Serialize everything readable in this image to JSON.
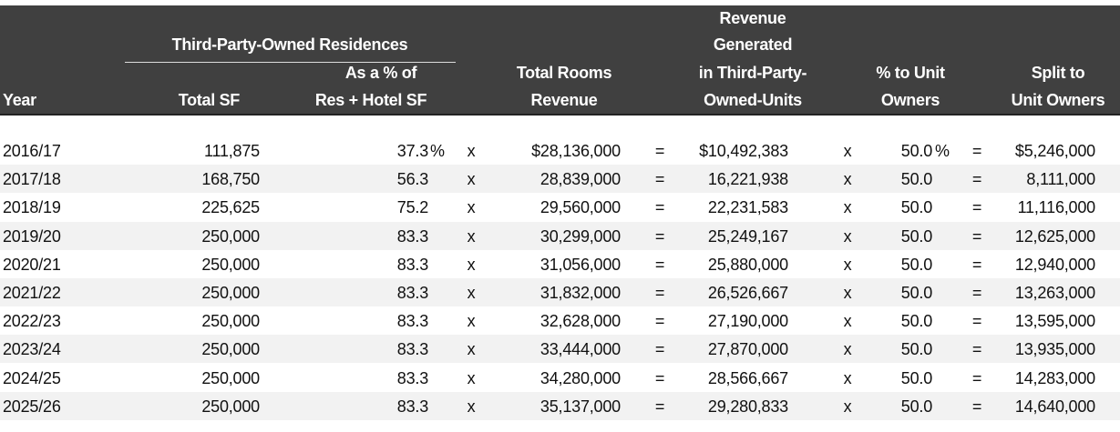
{
  "header": {
    "group_title": "Third-Party-Owned Residences",
    "year": "Year",
    "total_sf": "Total SF",
    "pct_line1": "As a % of",
    "pct_line2": "Res + Hotel SF",
    "rooms_line1": "Total Rooms",
    "rooms_line2": "Revenue",
    "gen_line1": "Revenue",
    "gen_line2": "Generated",
    "gen_line3": "in Third-Party-",
    "gen_line4": "Owned-Units",
    "owners_line1": "% to Unit",
    "owners_line2": "Owners",
    "split_line1": "Split to",
    "split_line2": "Unit Owners"
  },
  "rows": [
    {
      "year": "2016/17",
      "total_sf": "111,875",
      "pct": "37.3",
      "pct_suffix": "%",
      "op1": "x",
      "rooms": "$28,136,000",
      "op2": "=",
      "generated": "$10,492,383",
      "op3": "x",
      "owners_pct": "50.0",
      "owners_suffix": "%",
      "op4": "=",
      "split": "$5,246,000"
    },
    {
      "year": "2017/18",
      "total_sf": "168,750",
      "pct": "56.3",
      "op1": "x",
      "rooms": "28,839,000",
      "op2": "=",
      "generated": "16,221,938",
      "op3": "x",
      "owners_pct": "50.0",
      "op4": "=",
      "split": "8,111,000"
    },
    {
      "year": "2018/19",
      "total_sf": "225,625",
      "pct": "75.2",
      "op1": "x",
      "rooms": "29,560,000",
      "op2": "=",
      "generated": "22,231,583",
      "op3": "x",
      "owners_pct": "50.0",
      "op4": "=",
      "split": "11,116,000"
    },
    {
      "year": "2019/20",
      "total_sf": "250,000",
      "pct": "83.3",
      "op1": "x",
      "rooms": "30,299,000",
      "op2": "=",
      "generated": "25,249,167",
      "op3": "x",
      "owners_pct": "50.0",
      "op4": "=",
      "split": "12,625,000"
    },
    {
      "year": "2020/21",
      "total_sf": "250,000",
      "pct": "83.3",
      "op1": "x",
      "rooms": "31,056,000",
      "op2": "=",
      "generated": "25,880,000",
      "op3": "x",
      "owners_pct": "50.0",
      "op4": "=",
      "split": "12,940,000"
    },
    {
      "year": "2021/22",
      "total_sf": "250,000",
      "pct": "83.3",
      "op1": "x",
      "rooms": "31,832,000",
      "op2": "=",
      "generated": "26,526,667",
      "op3": "x",
      "owners_pct": "50.0",
      "op4": "=",
      "split": "13,263,000"
    },
    {
      "year": "2022/23",
      "total_sf": "250,000",
      "pct": "83.3",
      "op1": "x",
      "rooms": "32,628,000",
      "op2": "=",
      "generated": "27,190,000",
      "op3": "x",
      "owners_pct": "50.0",
      "op4": "=",
      "split": "13,595,000"
    },
    {
      "year": "2023/24",
      "total_sf": "250,000",
      "pct": "83.3",
      "op1": "x",
      "rooms": "33,444,000",
      "op2": "=",
      "generated": "27,870,000",
      "op3": "x",
      "owners_pct": "50.0",
      "op4": "=",
      "split": "13,935,000"
    },
    {
      "year": "2024/25",
      "total_sf": "250,000",
      "pct": "83.3",
      "op1": "x",
      "rooms": "34,280,000",
      "op2": "=",
      "generated": "28,566,667",
      "op3": "x",
      "owners_pct": "50.0",
      "op4": "=",
      "split": "14,283,000"
    },
    {
      "year": "2025/26",
      "total_sf": "250,000",
      "pct": "83.3",
      "op1": "x",
      "rooms": "35,137,000",
      "op2": "=",
      "generated": "29,280,833",
      "op3": "x",
      "owners_pct": "50.0",
      "op4": "=",
      "split": "14,640,000"
    }
  ]
}
